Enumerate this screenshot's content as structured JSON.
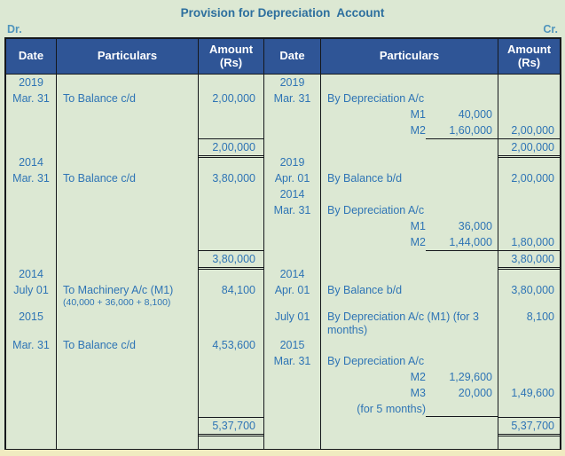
{
  "page": {
    "title": "Provision for Depreciation  Account",
    "dr_label": "Dr.",
    "cr_label": "Cr."
  },
  "colors": {
    "background": "#dce8d3",
    "header_bg": "#2f5596",
    "header_text": "#ffffff",
    "body_text": "#2e74b5",
    "title_text": "#2d6f9e",
    "drcr_text": "#4f94bc",
    "border": "#15181c",
    "bottom_strip": "#f0ebc0"
  },
  "table": {
    "headers": {
      "date_left": "Date",
      "particulars_left": "Particulars",
      "amount_line1": "Amount",
      "amount_line2": "(Rs)",
      "date_right": "Date",
      "particulars_right": "Particulars"
    },
    "rows": [
      {
        "ld": "2019",
        "rd": "2019"
      },
      {
        "ld": "Mar. 31",
        "lp": "To Balance c/d",
        "la": "2,00,000",
        "rd": "Mar. 31",
        "rp": "By Depreciation A/c"
      },
      {
        "sub": {
          "lbl": "M1",
          "val": "40,000"
        }
      },
      {
        "sub": {
          "lbl": "M2",
          "val": "1,60,000",
          "underline": true
        },
        "ra": "2,00,000"
      },
      {
        "la": "2,00,000",
        "la_total": true,
        "ra": "2,00,000",
        "ra_total": true
      },
      {
        "ld": "2014",
        "rd": "2019"
      },
      {
        "ld": "Mar. 31",
        "lp": "To Balance c/d",
        "la": "3,80,000",
        "rd": "Apr. 01",
        "rp": "By Balance b/d",
        "ra": "2,00,000"
      },
      {
        "rd": "2014"
      },
      {
        "rd": "Mar. 31",
        "rp": "By Depreciation A/c"
      },
      {
        "sub": {
          "lbl": "M1",
          "val": "36,000"
        }
      },
      {
        "sub": {
          "lbl": "M2",
          "val": "1,44,000",
          "underline": true
        },
        "ra": "1,80,000"
      },
      {
        "la": "3,80,000",
        "la_total": true,
        "ra": "3,80,000",
        "ra_total": true
      },
      {
        "ld": "2014",
        "rd": "2014"
      },
      {
        "ld": "July 01",
        "lp": "To Machinery A/c (M1)",
        "la": "84,100",
        "rd": "Apr. 01",
        "rp": "By Balance b/d",
        "ra": "3,80,000"
      },
      {
        "lp_note": "(40,000 + 36,000 + 8,100)"
      },
      {
        "ld": "2015",
        "rd": "July 01",
        "rp": "By Depreciation A/c (M1) (for 3",
        "ra": "8,100"
      },
      {
        "rp_cont": "months)"
      },
      {
        "ld": "Mar. 31",
        "lp": "To Balance c/d",
        "la": "4,53,600",
        "rd": "2015"
      },
      {
        "rd": "Mar. 31",
        "rp": "By Depreciation A/c"
      },
      {
        "sub": {
          "lbl": "M2",
          "val": "1,29,600"
        }
      },
      {
        "sub": {
          "lbl": "M3",
          "val": "20,000"
        },
        "ra": "1,49,600"
      },
      {
        "sub": {
          "lbl": "(for 5 months)",
          "val": "",
          "underline": true
        }
      },
      {
        "la": "5,37,700",
        "la_total": true,
        "ra": "5,37,700",
        "ra_total": true
      },
      {}
    ]
  }
}
